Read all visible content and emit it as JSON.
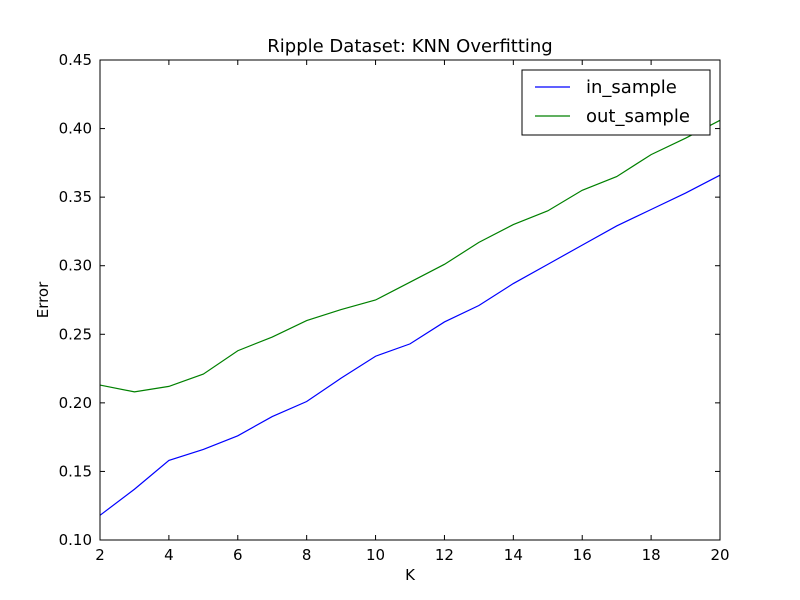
{
  "chart_data": {
    "type": "line",
    "title": "Ripple Dataset: KNN Overfitting",
    "xlabel": "K",
    "ylabel": "Error",
    "xlim": [
      2,
      20
    ],
    "ylim": [
      0.1,
      0.45
    ],
    "xticks": [
      2,
      4,
      6,
      8,
      10,
      12,
      14,
      16,
      18,
      20
    ],
    "yticks": [
      0.1,
      0.15,
      0.2,
      0.25,
      0.3,
      0.35,
      0.4,
      0.45
    ],
    "ytick_labels": [
      "0.10",
      "0.15",
      "0.20",
      "0.25",
      "0.30",
      "0.35",
      "0.40",
      "0.45"
    ],
    "x": [
      2,
      3,
      4,
      5,
      6,
      7,
      8,
      9,
      10,
      11,
      12,
      13,
      14,
      15,
      16,
      17,
      18,
      19,
      20
    ],
    "series": [
      {
        "name": "in_sample",
        "color": "#0000ff",
        "values": [
          0.118,
          0.137,
          0.158,
          0.166,
          0.176,
          0.19,
          0.201,
          0.218,
          0.234,
          0.243,
          0.259,
          0.271,
          0.287,
          0.301,
          0.315,
          0.329,
          0.341,
          0.353,
          0.366
        ]
      },
      {
        "name": "out_sample",
        "color": "#008000",
        "values": [
          0.213,
          0.208,
          0.212,
          0.221,
          0.238,
          0.248,
          0.26,
          0.268,
          0.275,
          0.288,
          0.301,
          0.317,
          0.33,
          0.34,
          0.355,
          0.365,
          0.381,
          0.393,
          0.406
        ]
      }
    ],
    "grid": false,
    "legend_position": "top-right"
  }
}
